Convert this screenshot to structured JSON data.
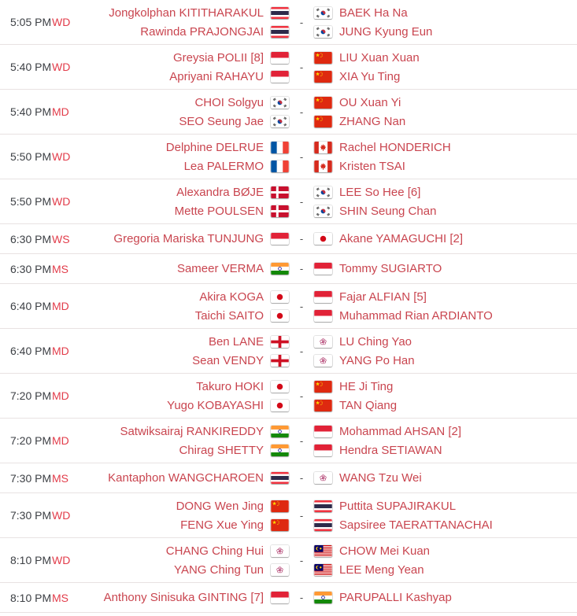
{
  "labels": {
    "vs_separator": "-"
  },
  "colors": {
    "player_red": "#c9454f",
    "type_red": "#e23c4a",
    "time_gray": "#3d4045",
    "divider": "#e8e2e2"
  },
  "matches": [
    {
      "time": "5:05 PM",
      "type": "WD",
      "team1": {
        "country": "THA",
        "players": [
          "Jongkolphan KITITHARAKUL",
          "Rawinda PRAJONGJAI"
        ]
      },
      "team2": {
        "country": "KOR",
        "players": [
          "BAEK Ha Na",
          "JUNG Kyung Eun"
        ]
      }
    },
    {
      "time": "5:40 PM",
      "type": "WD",
      "team1": {
        "country": "INA",
        "players": [
          "Greysia POLII [8]",
          "Apriyani RAHAYU"
        ]
      },
      "team2": {
        "country": "CHN",
        "players": [
          "LIU Xuan Xuan",
          "XIA Yu Ting"
        ]
      }
    },
    {
      "time": "5:40 PM",
      "type": "MD",
      "team1": {
        "country": "KOR",
        "players": [
          "CHOI Solgyu",
          "SEO Seung Jae"
        ]
      },
      "team2": {
        "country": "CHN",
        "players": [
          "OU Xuan Yi",
          "ZHANG Nan"
        ]
      }
    },
    {
      "time": "5:50 PM",
      "type": "WD",
      "team1": {
        "country": "FRA",
        "players": [
          "Delphine DELRUE",
          "Lea PALERMO"
        ]
      },
      "team2": {
        "country": "CAN",
        "players": [
          "Rachel HONDERICH",
          "Kristen TSAI"
        ]
      }
    },
    {
      "time": "5:50 PM",
      "type": "WD",
      "team1": {
        "country": "DEN",
        "players": [
          "Alexandra BØJE",
          "Mette POULSEN"
        ]
      },
      "team2": {
        "country": "KOR",
        "players": [
          "LEE So Hee [6]",
          "SHIN Seung Chan"
        ]
      }
    },
    {
      "time": "6:30 PM",
      "type": "WS",
      "team1": {
        "country": "INA",
        "players": [
          "Gregoria Mariska TUNJUNG"
        ]
      },
      "team2": {
        "country": "JPN",
        "players": [
          "Akane YAMAGUCHI [2]"
        ]
      }
    },
    {
      "time": "6:30 PM",
      "type": "MS",
      "team1": {
        "country": "IND",
        "players": [
          "Sameer VERMA"
        ]
      },
      "team2": {
        "country": "INA",
        "players": [
          "Tommy SUGIARTO"
        ]
      }
    },
    {
      "time": "6:40 PM",
      "type": "MD",
      "team1": {
        "country": "JPN",
        "players": [
          "Akira KOGA",
          "Taichi SAITO"
        ]
      },
      "team2": {
        "country": "INA",
        "players": [
          "Fajar ALFIAN [5]",
          "Muhammad Rian ARDIANTO"
        ]
      }
    },
    {
      "time": "6:40 PM",
      "type": "MD",
      "team1": {
        "country": "ENG",
        "players": [
          "Ben LANE",
          "Sean VENDY"
        ]
      },
      "team2": {
        "country": "TPE",
        "players": [
          "LU Ching Yao",
          "YANG Po Han"
        ]
      }
    },
    {
      "time": "7:20 PM",
      "type": "MD",
      "team1": {
        "country": "JPN",
        "players": [
          "Takuro HOKI",
          "Yugo KOBAYASHI"
        ]
      },
      "team2": {
        "country": "CHN",
        "players": [
          "HE Ji Ting",
          "TAN Qiang"
        ]
      }
    },
    {
      "time": "7:20 PM",
      "type": "MD",
      "team1": {
        "country": "IND",
        "players": [
          "Satwiksairaj RANKIREDDY",
          "Chirag SHETTY"
        ]
      },
      "team2": {
        "country": "INA",
        "players": [
          "Mohammad AHSAN [2]",
          "Hendra SETIAWAN"
        ]
      }
    },
    {
      "time": "7:30 PM",
      "type": "MS",
      "team1": {
        "country": "THA",
        "players": [
          "Kantaphon WANGCHAROEN"
        ]
      },
      "team2": {
        "country": "TPE",
        "players": [
          "WANG Tzu Wei"
        ]
      }
    },
    {
      "time": "7:30 PM",
      "type": "WD",
      "team1": {
        "country": "CHN",
        "players": [
          "DONG Wen Jing",
          "FENG Xue Ying"
        ]
      },
      "team2": {
        "country": "THA",
        "players": [
          "Puttita SUPAJIRAKUL",
          "Sapsiree TAERATTANACHAI"
        ]
      }
    },
    {
      "time": "8:10 PM",
      "type": "WD",
      "team1": {
        "country": "TPE",
        "players": [
          "CHANG Ching Hui",
          "YANG Ching Tun"
        ]
      },
      "team2": {
        "country": "MAS",
        "players": [
          "CHOW Mei Kuan",
          "LEE Meng Yean"
        ]
      }
    },
    {
      "time": "8:10 PM",
      "type": "MS",
      "team1": {
        "country": "INA",
        "players": [
          "Anthony Sinisuka GINTING [7]"
        ]
      },
      "team2": {
        "country": "IND",
        "players": [
          "PARUPALLI Kashyap"
        ]
      }
    }
  ]
}
